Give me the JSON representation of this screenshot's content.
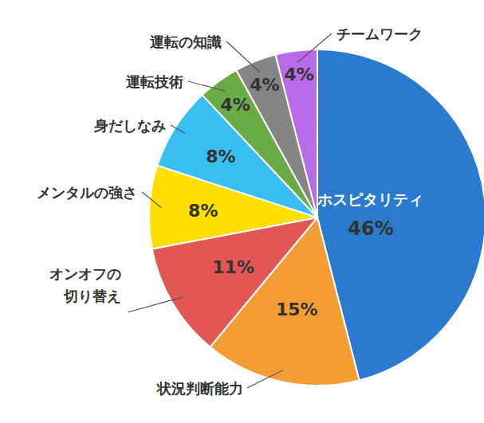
{
  "chart_data": {
    "type": "pie",
    "categories": [
      "ホスピタリティ",
      "状況判断能力",
      "オンオフの\n切り替え",
      "メンタルの強さ",
      "身だしなみ",
      "運転技術",
      "運転の知識",
      "チームワーク"
    ],
    "values": [
      46,
      15,
      11,
      8,
      8,
      4,
      4,
      4
    ],
    "value_labels": [
      "46%",
      "15%",
      "11%",
      "8%",
      "8%",
      "4%",
      "4%",
      "4%"
    ],
    "colors": [
      "#2a7ad0",
      "#f59d35",
      "#e35656",
      "#fde000",
      "#38bef0",
      "#6aab45",
      "#858585",
      "#b96ae9"
    ],
    "data_labels": true
  }
}
